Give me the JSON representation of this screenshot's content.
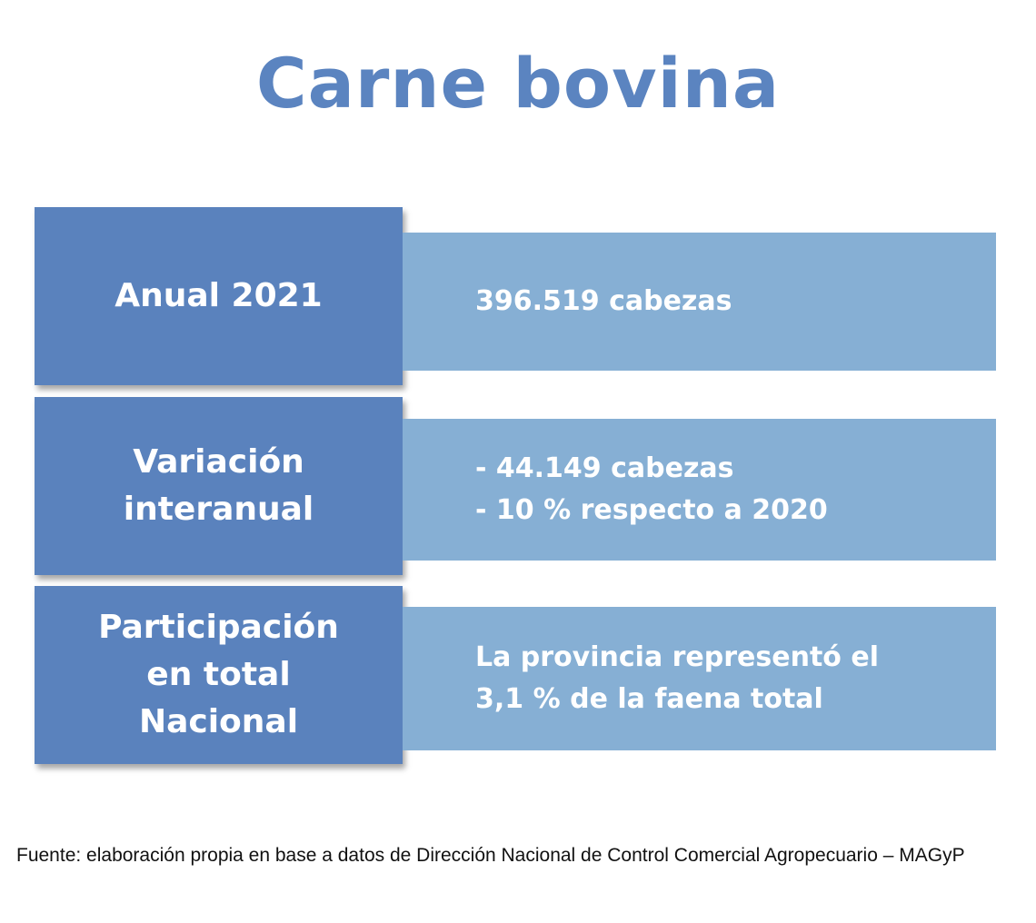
{
  "title": "Carne bovina",
  "rows": [
    {
      "label": "Anual 2021",
      "value": "396.519 cabezas"
    },
    {
      "label": "Variación\ninteranual",
      "value": "- 44.149 cabezas\n- 10 % respecto a 2020"
    },
    {
      "label": "Participación\nen total\nNacional",
      "value": "La provincia representó el\n3,1 % de la faena total"
    }
  ],
  "source": "Fuente: elaboración propia en base a datos de Dirección Nacional de Control Comercial Agropecuario – MAGyP",
  "colors": {
    "title": "#5b84c0",
    "label_box": "#5a82bd",
    "value_box": "#86afd4"
  }
}
